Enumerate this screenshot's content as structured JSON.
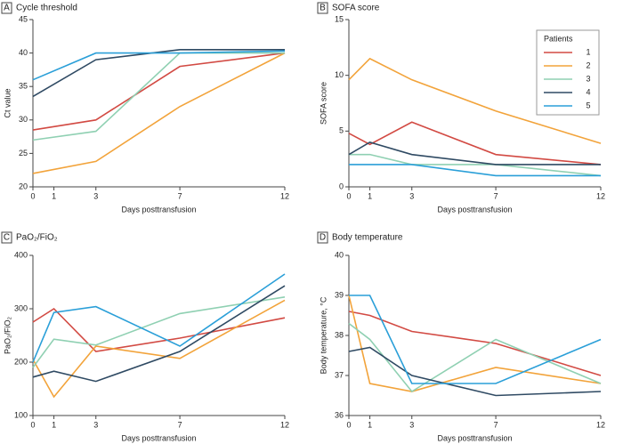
{
  "chart_data": [
    {
      "type": "line",
      "panel": "A",
      "title": "Cycle threshold",
      "xlabel": "Days posttransfusion",
      "ylabel": "Ct value",
      "xlim": [
        0,
        12
      ],
      "xticks": [
        0,
        1,
        3,
        7,
        12
      ],
      "ylim": [
        20,
        45
      ],
      "yticks": [
        20,
        25,
        30,
        35,
        40,
        45
      ],
      "series": [
        {
          "color": "#d24a43",
          "x": [
            0,
            3,
            7,
            12
          ],
          "values": [
            28.5,
            30,
            38,
            40
          ]
        },
        {
          "color": "#f2a33a",
          "x": [
            0,
            3,
            7,
            12
          ],
          "values": [
            22,
            23.8,
            32,
            40
          ]
        },
        {
          "color": "#8fd0b2",
          "x": [
            0,
            3,
            7,
            12
          ],
          "values": [
            27,
            28.3,
            40,
            40
          ]
        },
        {
          "color": "#2f4a63",
          "x": [
            0,
            3,
            7,
            12
          ],
          "values": [
            33.5,
            39,
            40.5,
            40.5
          ]
        },
        {
          "color": "#2a9fd8",
          "x": [
            0,
            3,
            7,
            12
          ],
          "values": [
            36,
            40,
            40,
            40.3
          ]
        }
      ]
    },
    {
      "type": "line",
      "panel": "B",
      "title": "SOFA score",
      "xlabel": "Days posttransfusion",
      "ylabel": "SOFA score",
      "xlim": [
        0,
        12
      ],
      "xticks": [
        0,
        1,
        3,
        7,
        12
      ],
      "ylim": [
        0,
        15
      ],
      "yticks": [
        0,
        5,
        10,
        15
      ],
      "legend": {
        "title": "Patients",
        "position": "upper right"
      },
      "x": [
        0,
        1,
        3,
        7,
        12
      ],
      "series": [
        {
          "name": "1",
          "color": "#d24a43",
          "values": [
            4.8,
            3.8,
            5.8,
            2.9,
            2
          ]
        },
        {
          "name": "2",
          "color": "#f2a33a",
          "values": [
            9.6,
            11.5,
            9.6,
            6.8,
            3.9
          ]
        },
        {
          "name": "3",
          "color": "#8fd0b2",
          "values": [
            2.9,
            2.9,
            2,
            2,
            1
          ]
        },
        {
          "name": "4",
          "color": "#2f4a63",
          "values": [
            2.9,
            4,
            2.9,
            2,
            2
          ]
        },
        {
          "name": "5",
          "color": "#2a9fd8",
          "values": [
            2,
            2,
            2,
            1,
            1
          ]
        }
      ]
    },
    {
      "type": "line",
      "panel": "C",
      "title": "PaO₂/FiO₂",
      "xlabel": "Days posttransfusion",
      "ylabel": "PaO₂/FiO₂",
      "xlim": [
        0,
        12
      ],
      "xticks": [
        0,
        1,
        3,
        7,
        12
      ],
      "ylim": [
        100,
        400
      ],
      "yticks": [
        100,
        200,
        300,
        400
      ],
      "x": [
        0,
        1,
        3,
        7,
        12
      ],
      "series": [
        {
          "color": "#d24a43",
          "values": [
            275,
            300,
            220,
            245,
            283
          ]
        },
        {
          "color": "#f2a33a",
          "values": [
            205,
            135,
            230,
            207,
            316
          ]
        },
        {
          "color": "#8fd0b2",
          "values": [
            190,
            243,
            232,
            291,
            322
          ]
        },
        {
          "color": "#2f4a63",
          "values": [
            172,
            183,
            164,
            220,
            343
          ]
        },
        {
          "color": "#2a9fd8",
          "values": [
            200,
            293,
            304,
            230,
            365
          ]
        }
      ]
    },
    {
      "type": "line",
      "panel": "D",
      "title": "Body temperature",
      "xlabel": "Days posttransfusion",
      "ylabel": "Body temperature, °C",
      "xlim": [
        0,
        12
      ],
      "xticks": [
        0,
        1,
        3,
        7,
        12
      ],
      "ylim": [
        36,
        40
      ],
      "yticks": [
        36,
        37,
        38,
        39,
        40
      ],
      "x": [
        0,
        1,
        3,
        7,
        12
      ],
      "series": [
        {
          "color": "#d24a43",
          "values": [
            38.6,
            38.5,
            38.1,
            37.8,
            37
          ]
        },
        {
          "color": "#f2a33a",
          "values": [
            39,
            36.8,
            36.6,
            37.2,
            36.8
          ]
        },
        {
          "color": "#8fd0b2",
          "values": [
            38.3,
            37.9,
            36.6,
            37.9,
            36.8
          ]
        },
        {
          "color": "#2f4a63",
          "values": [
            37.6,
            37.7,
            37,
            36.5,
            36.6
          ]
        },
        {
          "color": "#2a9fd8",
          "values": [
            39,
            39,
            36.8,
            36.8,
            37.9
          ]
        }
      ]
    }
  ]
}
